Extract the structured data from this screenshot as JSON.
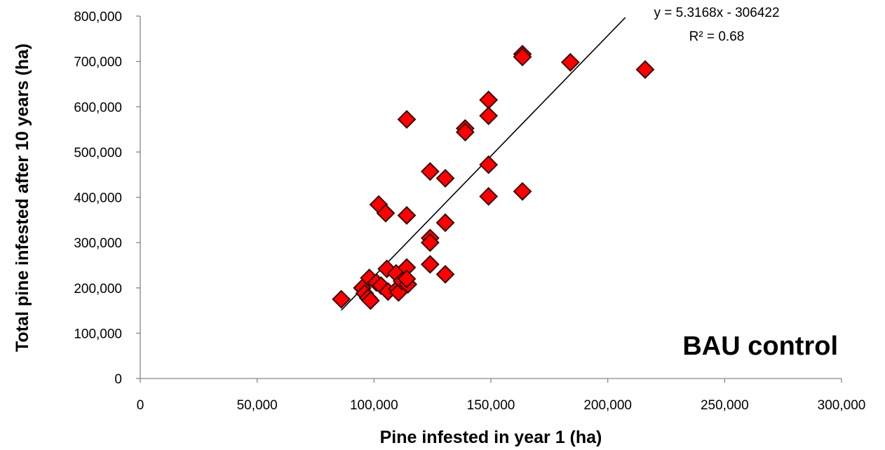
{
  "chart_data": {
    "type": "scatter",
    "title": "",
    "xlabel": "Pine infested in year 1 (ha)",
    "ylabel": "Total pine infested after 10 years (ha)",
    "xlim": [
      0,
      300000
    ],
    "ylim": [
      0,
      800000
    ],
    "x_ticks": [
      0,
      50000,
      100000,
      150000,
      200000,
      250000,
      300000
    ],
    "y_ticks": [
      0,
      100000,
      200000,
      300000,
      400000,
      500000,
      600000,
      700000,
      800000
    ],
    "x_tick_labels": [
      "0",
      "50,000",
      "100,000",
      "150,000",
      "200,000",
      "250,000",
      "300,000"
    ],
    "y_tick_labels": [
      "0",
      "100,000",
      "200,000",
      "300,000",
      "400,000",
      "500,000",
      "600,000",
      "700,000",
      "800,000"
    ],
    "grid": false,
    "marker": "diamond",
    "marker_color": "#ff0000",
    "marker_edge_color": "#3a0a0a",
    "points": [
      {
        "x": 86000,
        "y": 175000
      },
      {
        "x": 95000,
        "y": 200000
      },
      {
        "x": 96000,
        "y": 188000
      },
      {
        "x": 97500,
        "y": 178000
      },
      {
        "x": 98000,
        "y": 222000
      },
      {
        "x": 98500,
        "y": 172000
      },
      {
        "x": 101000,
        "y": 212000
      },
      {
        "x": 102000,
        "y": 384000
      },
      {
        "x": 103000,
        "y": 205000
      },
      {
        "x": 105000,
        "y": 365000
      },
      {
        "x": 105500,
        "y": 242000
      },
      {
        "x": 106000,
        "y": 192000
      },
      {
        "x": 109500,
        "y": 232000
      },
      {
        "x": 110000,
        "y": 198000
      },
      {
        "x": 110500,
        "y": 190000
      },
      {
        "x": 112000,
        "y": 215000
      },
      {
        "x": 114000,
        "y": 360000
      },
      {
        "x": 114000,
        "y": 572000
      },
      {
        "x": 114000,
        "y": 245000
      },
      {
        "x": 114500,
        "y": 208000
      },
      {
        "x": 114000,
        "y": 220000
      },
      {
        "x": 124000,
        "y": 457000
      },
      {
        "x": 124000,
        "y": 310000
      },
      {
        "x": 124000,
        "y": 300000
      },
      {
        "x": 124000,
        "y": 252000
      },
      {
        "x": 130500,
        "y": 442000
      },
      {
        "x": 130500,
        "y": 344000
      },
      {
        "x": 130500,
        "y": 230000
      },
      {
        "x": 139000,
        "y": 552000
      },
      {
        "x": 139000,
        "y": 544000
      },
      {
        "x": 149000,
        "y": 615000
      },
      {
        "x": 149000,
        "y": 580000
      },
      {
        "x": 149000,
        "y": 472000
      },
      {
        "x": 149000,
        "y": 402000
      },
      {
        "x": 163500,
        "y": 716000
      },
      {
        "x": 163500,
        "y": 710000
      },
      {
        "x": 163500,
        "y": 413000
      },
      {
        "x": 184000,
        "y": 698000
      },
      {
        "x": 216000,
        "y": 682000
      }
    ],
    "trendline": {
      "type": "linear",
      "slope": 5.3168,
      "intercept": -306422,
      "x_range": [
        86000,
        207500
      ],
      "equation_label": "y = 5.3168x - 306422",
      "r2_label": "R² = 0.68"
    },
    "annotation": "BAU control"
  }
}
